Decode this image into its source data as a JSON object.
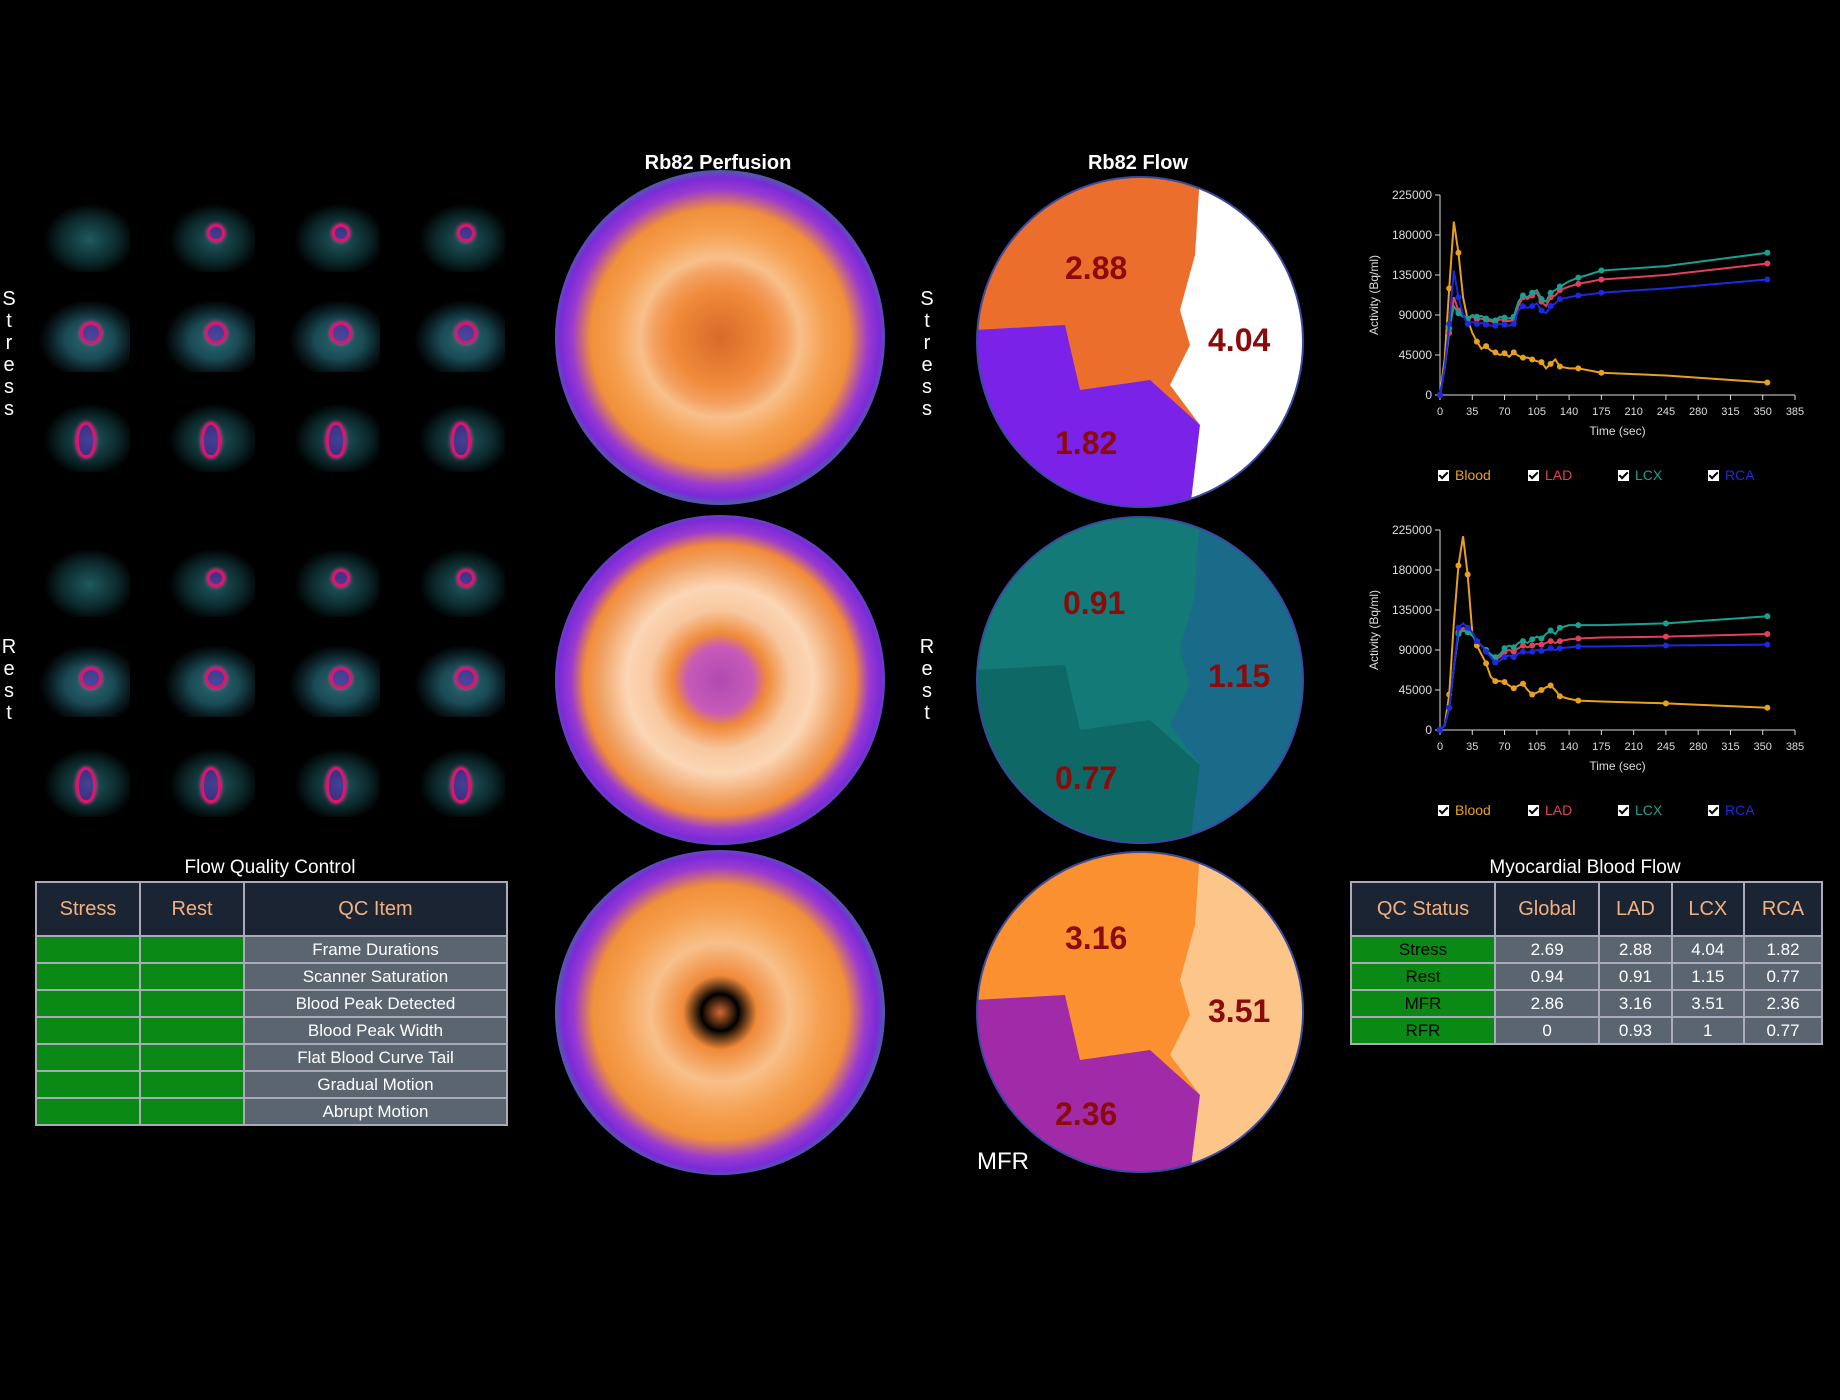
{
  "columns": {
    "perfusion_title": "Rb82 Perfusion",
    "flow_title": "Rb82 Flow"
  },
  "side_labels": {
    "stress": "Stress",
    "rest": "Rest"
  },
  "flow_qc": {
    "title": "Flow Quality Control",
    "headers": [
      "Stress",
      "Rest",
      "QC Item"
    ],
    "items": [
      "Frame Durations",
      "Scanner Saturation",
      "Blood Peak Detected",
      "Blood Peak Width",
      "Flat Blood Curve Tail",
      "Gradual Motion",
      "Abrupt Motion"
    ],
    "status_color": "#0a8a14"
  },
  "flow_maps": {
    "stress": {
      "lad": "2.88",
      "lcx": "4.04",
      "rca": "1.82"
    },
    "rest": {
      "lad": "0.91",
      "lcx": "1.15",
      "rca": "0.77"
    },
    "mfr": {
      "lad": "3.16",
      "lcx": "3.51",
      "rca": "2.36",
      "label": "MFR"
    }
  },
  "mbf": {
    "title": "Myocardial Blood Flow",
    "headers": [
      "QC Status",
      "Global",
      "LAD",
      "LCX",
      "RCA"
    ],
    "rows": [
      [
        "Stress",
        "2.69",
        "2.88",
        "4.04",
        "1.82"
      ],
      [
        "Rest",
        "0.94",
        "0.91",
        "1.15",
        "0.77"
      ],
      [
        "MFR",
        "2.86",
        "3.16",
        "3.51",
        "2.36"
      ],
      [
        "RFR",
        "0",
        "0.93",
        "1",
        "0.77"
      ]
    ]
  },
  "legend": [
    {
      "label": "Blood",
      "color": "#e8a020"
    },
    {
      "label": "LAD",
      "color": "#e0405a"
    },
    {
      "label": "LCX",
      "color": "#1aa090"
    },
    {
      "label": "RCA",
      "color": "#1a2ae0"
    }
  ],
  "chart_data": [
    {
      "type": "line",
      "name": "stress-curves",
      "xlabel": "Time (sec)",
      "ylabel": "Activity (Bq/ml)",
      "xlim": [
        0,
        385
      ],
      "ylim": [
        0,
        225000
      ],
      "xticks": [
        0,
        35,
        70,
        105,
        140,
        175,
        210,
        245,
        280,
        315,
        350,
        385
      ],
      "yticks": [
        0,
        45000,
        90000,
        135000,
        180000,
        225000
      ],
      "x": [
        0,
        5,
        10,
        15,
        20,
        25,
        30,
        35,
        40,
        45,
        50,
        55,
        60,
        65,
        70,
        75,
        80,
        85,
        90,
        95,
        100,
        105,
        110,
        115,
        120,
        125,
        130,
        140,
        150,
        160,
        175,
        245,
        355
      ],
      "series": [
        {
          "name": "Blood",
          "color": "#e8a020",
          "values": [
            0,
            40000,
            120000,
            195000,
            160000,
            110000,
            85000,
            70000,
            60000,
            52000,
            55000,
            50000,
            48000,
            45000,
            47000,
            43000,
            48000,
            44000,
            42000,
            42000,
            40000,
            38000,
            37000,
            30000,
            35000,
            40000,
            32000,
            30000,
            30000,
            28000,
            25000,
            22000,
            14000
          ]
        },
        {
          "name": "LAD",
          "color": "#e0405a",
          "values": [
            0,
            30000,
            70000,
            110000,
            95000,
            90000,
            85000,
            88000,
            85000,
            86000,
            84000,
            83000,
            82000,
            85000,
            84000,
            83000,
            85000,
            100000,
            110000,
            108000,
            112000,
            115000,
            105000,
            100000,
            110000,
            112000,
            118000,
            122000,
            125000,
            127000,
            130000,
            135000,
            148000
          ]
        },
        {
          "name": "LCX",
          "color": "#1aa090",
          "values": [
            0,
            30000,
            75000,
            100000,
            92000,
            88000,
            86000,
            90000,
            88000,
            89000,
            86000,
            85000,
            84000,
            88000,
            87000,
            86000,
            88000,
            105000,
            112000,
            110000,
            115000,
            118000,
            108000,
            105000,
            115000,
            118000,
            122000,
            128000,
            132000,
            135000,
            140000,
            145000,
            160000
          ]
        },
        {
          "name": "RCA",
          "color": "#1a2ae0",
          "values": [
            0,
            30000,
            80000,
            140000,
            110000,
            90000,
            80000,
            82000,
            80000,
            81000,
            79000,
            78000,
            78000,
            80000,
            79000,
            78000,
            80000,
            95000,
            100000,
            98000,
            100000,
            103000,
            95000,
            92000,
            100000,
            103000,
            108000,
            110000,
            112000,
            113000,
            115000,
            120000,
            130000
          ]
        }
      ]
    },
    {
      "type": "line",
      "name": "rest-curves",
      "xlabel": "Time (sec)",
      "ylabel": "Activity (Bq/ml)",
      "xlim": [
        0,
        385
      ],
      "ylim": [
        0,
        225000
      ],
      "xticks": [
        0,
        35,
        70,
        105,
        140,
        175,
        210,
        245,
        280,
        315,
        350,
        385
      ],
      "yticks": [
        0,
        45000,
        90000,
        135000,
        180000,
        225000
      ],
      "x": [
        0,
        5,
        10,
        15,
        20,
        25,
        30,
        35,
        40,
        45,
        50,
        55,
        60,
        65,
        70,
        75,
        80,
        85,
        90,
        95,
        100,
        105,
        110,
        115,
        120,
        125,
        130,
        140,
        150,
        175,
        245,
        355
      ],
      "series": [
        {
          "name": "Blood",
          "color": "#e8a020",
          "values": [
            0,
            5000,
            40000,
            120000,
            185000,
            218000,
            175000,
            110000,
            95000,
            85000,
            75000,
            60000,
            55000,
            55000,
            54000,
            50000,
            47000,
            50000,
            52000,
            45000,
            40000,
            42000,
            45000,
            48000,
            50000,
            45000,
            38000,
            35000,
            33000,
            32000,
            30000,
            25000
          ]
        },
        {
          "name": "LAD",
          "color": "#e0405a",
          "values": [
            0,
            5000,
            25000,
            70000,
            110000,
            115000,
            112000,
            108000,
            100000,
            95000,
            90000,
            85000,
            80000,
            82000,
            88000,
            90000,
            88000,
            92000,
            95000,
            93000,
            95000,
            97000,
            96000,
            98000,
            100000,
            98000,
            100000,
            102000,
            103000,
            104000,
            105000,
            108000
          ]
        },
        {
          "name": "LCX",
          "color": "#1aa090",
          "values": [
            0,
            5000,
            25000,
            70000,
            108000,
            112000,
            110000,
            106000,
            100000,
            95000,
            90000,
            85000,
            82000,
            85000,
            92000,
            95000,
            93000,
            98000,
            100000,
            98000,
            102000,
            105000,
            103000,
            108000,
            112000,
            108000,
            115000,
            118000,
            118000,
            118000,
            120000,
            128000
          ]
        },
        {
          "name": "RCA",
          "color": "#1a2ae0",
          "values": [
            0,
            5000,
            25000,
            70000,
            115000,
            120000,
            115000,
            110000,
            100000,
            95000,
            88000,
            82000,
            76000,
            78000,
            82000,
            84000,
            82000,
            86000,
            88000,
            87000,
            88000,
            90000,
            89000,
            90000,
            92000,
            90000,
            92000,
            93000,
            94000,
            94000,
            95000,
            96000
          ]
        }
      ]
    }
  ]
}
